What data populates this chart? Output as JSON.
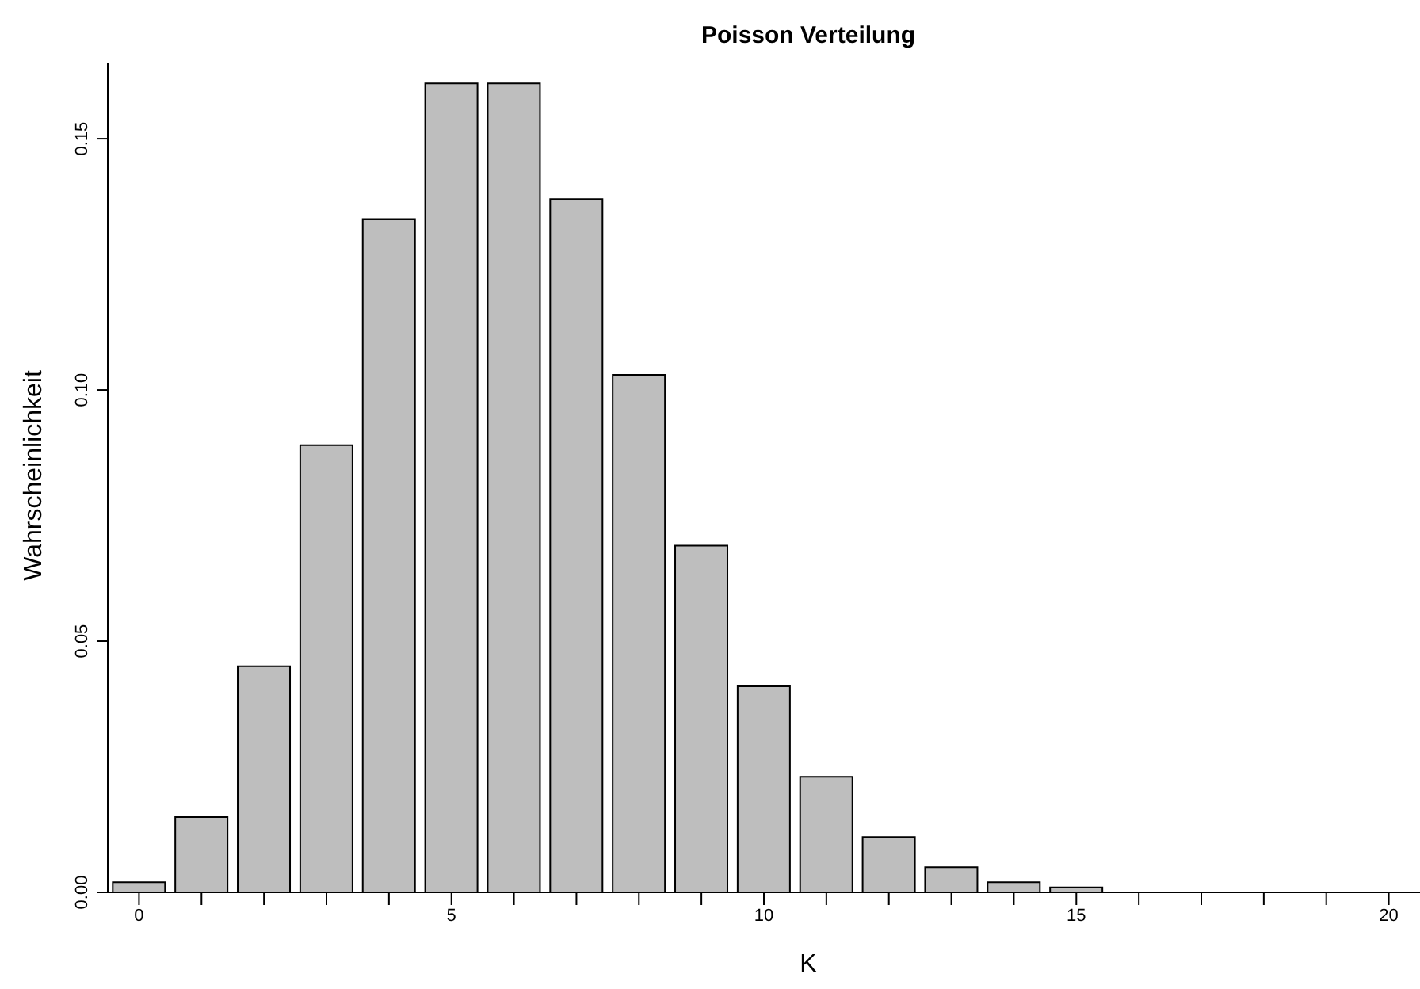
{
  "chart_data": {
    "type": "bar",
    "title": "Poisson Verteilung",
    "xlabel": "K",
    "ylabel": "Wahrscheinlichkeit",
    "categories": [
      "0",
      null,
      null,
      null,
      null,
      "5",
      null,
      null,
      null,
      null,
      "10",
      null,
      null,
      null,
      null,
      "15",
      null,
      null,
      null,
      null,
      "20"
    ],
    "values": [
      0.002,
      0.015,
      0.045,
      0.089,
      0.134,
      0.161,
      0.161,
      0.138,
      0.103,
      0.069,
      0.041,
      0.023,
      0.011,
      0.005,
      0.002,
      0.001,
      0,
      0,
      0,
      0,
      0
    ],
    "color": "#bebebe",
    "ylim": [
      0,
      0.165
    ],
    "yticks": [
      {
        "value": 0,
        "label": "0.00"
      },
      {
        "value": 0.05,
        "label": "0.05"
      },
      {
        "value": 0.1,
        "label": "0.10"
      },
      {
        "value": 0.15,
        "label": "0.15"
      }
    ],
    "grid": false,
    "legend": false
  }
}
